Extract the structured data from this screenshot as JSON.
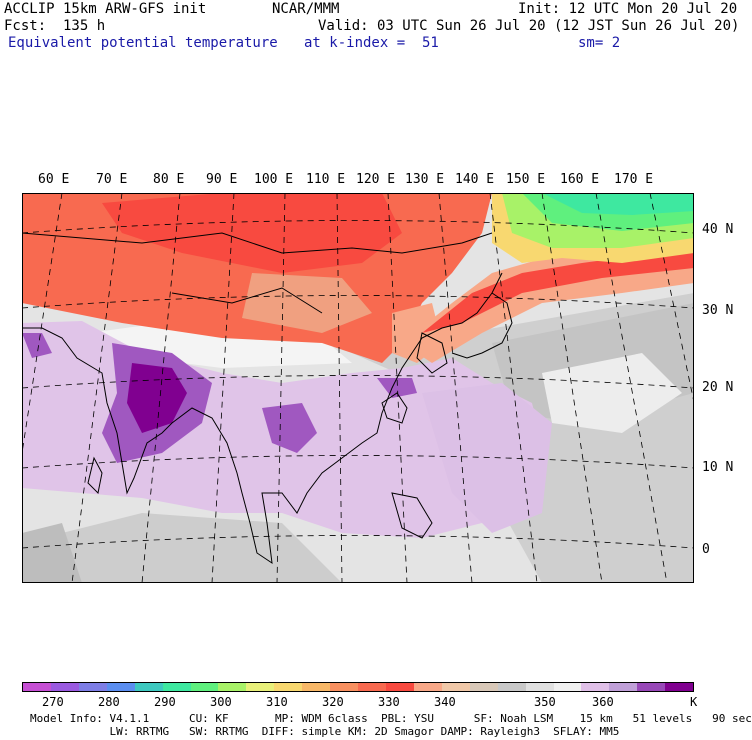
{
  "header": {
    "model": "ACCLIP 15km ARW-GFS init",
    "org": "NCAR/MMM",
    "init": "Init: 12 UTC Mon 20 Jul 20",
    "fcst": "Fcst:  135 h",
    "valid": "Valid: 03 UTC Sun 26 Jul 20 (12 JST Sun 26 Jul 20)",
    "field": "Equivalent potential temperature",
    "level": "at k-index =  51",
    "smooth": "sm= 2"
  },
  "map": {
    "lon_labels": [
      "60 E",
      "70 E",
      "80 E",
      "90 E",
      "100 E",
      "110 E",
      "120 E",
      "130 E",
      "140 E",
      "150 E",
      "160 E",
      "170 E"
    ],
    "lat_labels": [
      "40 N",
      "30 N",
      "20 N",
      "10 N",
      "0"
    ]
  },
  "colorbar": {
    "colors": [
      "#c64fd4",
      "#9a5ae0",
      "#7e7ee6",
      "#5b8ef0",
      "#3ec9c0",
      "#3ee8a0",
      "#5ff07e",
      "#a8f268",
      "#e8f07a",
      "#f8d870",
      "#f8b868",
      "#f89060",
      "#f86a50",
      "#f84a40",
      "#f8a888",
      "#f0c8a8",
      "#d8c8b8",
      "#c8c8c8",
      "#e0e0e0",
      "#f0f0f0",
      "#e0c0e8",
      "#c0a0d8",
      "#9848b8",
      "#800090"
    ],
    "labels": [
      "270",
      "280",
      "290",
      "300",
      "310",
      "320",
      "330",
      "340",
      "350",
      "360"
    ],
    "unit": "K"
  },
  "info": {
    "line1": "Model Info: V4.1.1      CU: KF       MP: WDM 6class  PBL: YSU      SF: Noah LSM    15 km   51 levels   90 sec",
    "line2": "            LW: RRTMG   SW: RRTMG  DIFF: simple KM: 2D Smagor DAMP: Rayleigh3  SFLAY: MM5"
  }
}
